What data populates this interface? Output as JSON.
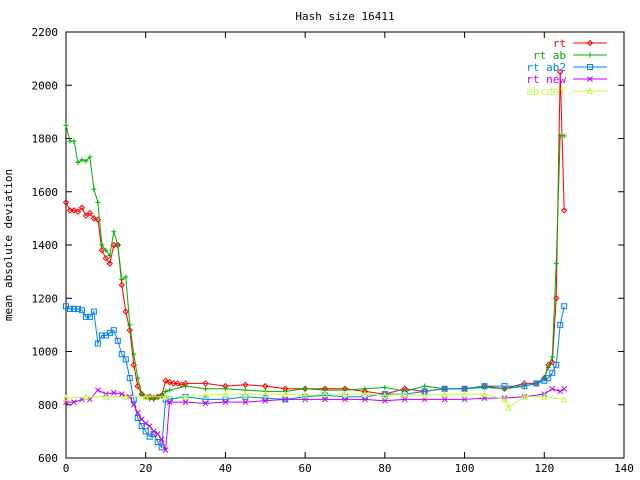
{
  "chart_data": {
    "type": "line",
    "title": "Hash size 16411",
    "xlabel": "",
    "ylabel": "mean absolute deviation",
    "xlim": [
      0,
      140
    ],
    "ylim": [
      600,
      2200
    ],
    "xticks": [
      "0",
      "20",
      "40",
      "60",
      "80",
      "100",
      "120",
      "140"
    ],
    "yticks": [
      "600",
      "800",
      "1000",
      "1200",
      "1400",
      "1600",
      "1800",
      "2000",
      "2200"
    ],
    "legend_position": "top-right",
    "series": [
      {
        "name": "rt",
        "color": "#ff0000",
        "marker": "diamond",
        "x": [
          0,
          1,
          2,
          3,
          4,
          5,
          6,
          7,
          8,
          9,
          10,
          11,
          12,
          13,
          14,
          15,
          16,
          17,
          18,
          19,
          20,
          21,
          22,
          23,
          24,
          25,
          26,
          27,
          28,
          29,
          30,
          35,
          40,
          45,
          50,
          55,
          60,
          65,
          70,
          75,
          80,
          85,
          90,
          95,
          100,
          105,
          110,
          115,
          118,
          120,
          121,
          122,
          123,
          124,
          125
        ],
        "y": [
          1560,
          1530,
          1530,
          1525,
          1540,
          1510,
          1520,
          1500,
          1495,
          1380,
          1350,
          1330,
          1400,
          1400,
          1250,
          1150,
          1080,
          950,
          870,
          840,
          830,
          830,
          825,
          830,
          835,
          890,
          885,
          880,
          880,
          875,
          880,
          880,
          870,
          875,
          870,
          860,
          860,
          860,
          860,
          850,
          840,
          860,
          850,
          860,
          860,
          870,
          860,
          880,
          880,
          900,
          950,
          960,
          1200,
          2050,
          1530
        ]
      },
      {
        "name": "rt ab",
        "color": "#00b000",
        "marker": "plus",
        "x": [
          0,
          1,
          2,
          3,
          4,
          5,
          6,
          7,
          8,
          9,
          10,
          11,
          12,
          13,
          14,
          15,
          16,
          17,
          18,
          19,
          20,
          21,
          22,
          23,
          24,
          25,
          26,
          30,
          35,
          40,
          45,
          50,
          55,
          60,
          65,
          70,
          75,
          80,
          85,
          90,
          95,
          100,
          105,
          110,
          115,
          118,
          120,
          121,
          122,
          123,
          124,
          125
        ],
        "y": [
          1850,
          1790,
          1790,
          1710,
          1720,
          1715,
          1730,
          1610,
          1560,
          1400,
          1380,
          1360,
          1450,
          1400,
          1270,
          1280,
          1100,
          990,
          900,
          840,
          830,
          820,
          820,
          830,
          835,
          850,
          855,
          870,
          860,
          860,
          855,
          850,
          850,
          860,
          855,
          855,
          860,
          865,
          850,
          870,
          860,
          860,
          865,
          860,
          870,
          880,
          900,
          940,
          980,
          1330,
          1810,
          1810
        ]
      },
      {
        "name": "rt ab2",
        "color": "#0080ff",
        "marker": "square",
        "x": [
          0,
          1,
          2,
          3,
          4,
          5,
          6,
          7,
          8,
          9,
          10,
          11,
          12,
          13,
          14,
          15,
          16,
          17,
          18,
          19,
          20,
          21,
          22,
          23,
          24,
          25,
          26,
          30,
          35,
          40,
          45,
          50,
          55,
          60,
          65,
          70,
          75,
          80,
          85,
          90,
          95,
          100,
          105,
          110,
          115,
          118,
          120,
          121,
          122,
          123,
          124,
          125
        ],
        "y": [
          1170,
          1160,
          1160,
          1160,
          1155,
          1130,
          1130,
          1150,
          1030,
          1060,
          1060,
          1070,
          1080,
          1040,
          990,
          970,
          900,
          820,
          750,
          720,
          700,
          680,
          690,
          660,
          640,
          820,
          820,
          830,
          820,
          820,
          830,
          825,
          820,
          830,
          835,
          830,
          830,
          840,
          840,
          850,
          860,
          860,
          870,
          870,
          870,
          880,
          890,
          900,
          920,
          950,
          1100,
          1170
        ]
      },
      {
        "name": "rt new",
        "color": "#c000ff",
        "marker": "x",
        "x": [
          0,
          2,
          4,
          6,
          8,
          10,
          12,
          14,
          16,
          17,
          18,
          19,
          20,
          21,
          22,
          23,
          24,
          25,
          26,
          30,
          35,
          40,
          45,
          50,
          55,
          60,
          65,
          70,
          75,
          80,
          85,
          90,
          95,
          100,
          105,
          110,
          115,
          120,
          122,
          124,
          125
        ],
        "y": [
          810,
          810,
          820,
          820,
          855,
          840,
          845,
          840,
          830,
          800,
          770,
          745,
          730,
          720,
          700,
          690,
          670,
          630,
          810,
          810,
          805,
          810,
          810,
          815,
          820,
          820,
          820,
          820,
          820,
          815,
          820,
          820,
          820,
          820,
          825,
          825,
          830,
          840,
          860,
          850,
          860
        ]
      },
      {
        "name": "abcdef",
        "color": "#c0ff40",
        "marker": "triangle",
        "x": [
          0,
          5,
          10,
          15,
          20,
          25,
          30,
          35,
          40,
          45,
          50,
          55,
          60,
          65,
          70,
          75,
          80,
          85,
          90,
          95,
          100,
          105,
          110,
          111,
          115,
          120,
          125
        ],
        "y": [
          825,
          830,
          830,
          830,
          830,
          830,
          830,
          835,
          840,
          840,
          840,
          840,
          835,
          840,
          840,
          840,
          835,
          840,
          835,
          840,
          840,
          840,
          820,
          790,
          830,
          830,
          820
        ]
      }
    ]
  }
}
